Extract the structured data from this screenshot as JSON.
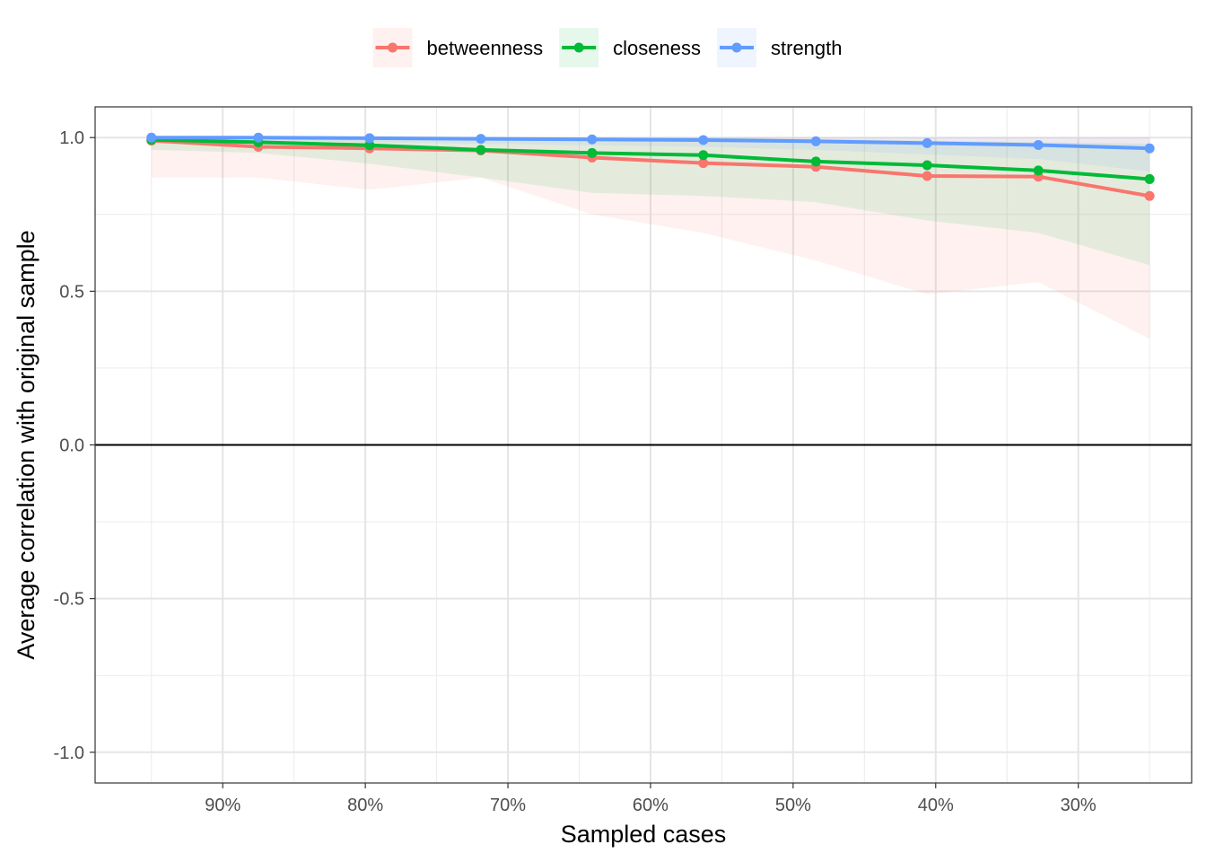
{
  "chart_data": {
    "type": "line",
    "xlabel": "Sampled cases",
    "ylabel": "Average correlation with original sample",
    "x_axis_reversed": true,
    "xlim": [
      0.2205,
      0.9895
    ],
    "ylim": [
      -1.1,
      1.1
    ],
    "x_ticks": [
      {
        "value": 0.9,
        "label": "90%"
      },
      {
        "value": 0.8,
        "label": "80%"
      },
      {
        "value": 0.7,
        "label": "70%"
      },
      {
        "value": 0.6,
        "label": "60%"
      },
      {
        "value": 0.5,
        "label": "50%"
      },
      {
        "value": 0.4,
        "label": "40%"
      },
      {
        "value": 0.3,
        "label": "30%"
      }
    ],
    "y_ticks": [
      {
        "value": 1.0,
        "label": "1.0"
      },
      {
        "value": 0.5,
        "label": "0.5"
      },
      {
        "value": 0.0,
        "label": "0.0"
      },
      {
        "value": -0.5,
        "label": "-0.5"
      },
      {
        "value": -1.0,
        "label": "-1.0"
      }
    ],
    "reference_line_y": 0,
    "grid": true,
    "legend_position": "top",
    "x": [
      0.95,
      0.875,
      0.797,
      0.719,
      0.641,
      0.563,
      0.484,
      0.406,
      0.328,
      0.25
    ],
    "series": [
      {
        "name": "betweenness",
        "color": "#F8766D",
        "values": [
          0.99,
          0.97,
          0.965,
          0.958,
          0.935,
          0.917,
          0.905,
          0.875,
          0.873,
          0.81
        ],
        "lower": [
          0.87,
          0.87,
          0.83,
          0.87,
          0.75,
          0.69,
          0.6,
          0.49,
          0.53,
          0.345
        ],
        "upper": [
          1.0,
          1.0,
          1.0,
          1.0,
          1.0,
          1.0,
          1.0,
          1.0,
          1.0,
          1.0
        ]
      },
      {
        "name": "closeness",
        "color": "#00BA38",
        "values": [
          0.993,
          0.985,
          0.975,
          0.96,
          0.95,
          0.943,
          0.922,
          0.91,
          0.893,
          0.865
        ],
        "lower": [
          0.96,
          0.95,
          0.915,
          0.87,
          0.82,
          0.81,
          0.79,
          0.73,
          0.69,
          0.585
        ],
        "upper": [
          1.0,
          1.0,
          1.0,
          1.0,
          1.0,
          1.0,
          0.995,
          0.99,
          0.985,
          0.98
        ]
      },
      {
        "name": "strength",
        "color": "#619CFF",
        "values": [
          1.0,
          1.0,
          0.998,
          0.996,
          0.994,
          0.992,
          0.988,
          0.982,
          0.976,
          0.965
        ],
        "lower": [
          0.99,
          0.99,
          0.985,
          0.98,
          0.975,
          0.97,
          0.96,
          0.945,
          0.93,
          0.89
        ],
        "upper": [
          1.0,
          1.0,
          1.0,
          1.0,
          1.0,
          1.0,
          1.0,
          1.0,
          1.0,
          1.0
        ]
      }
    ]
  }
}
